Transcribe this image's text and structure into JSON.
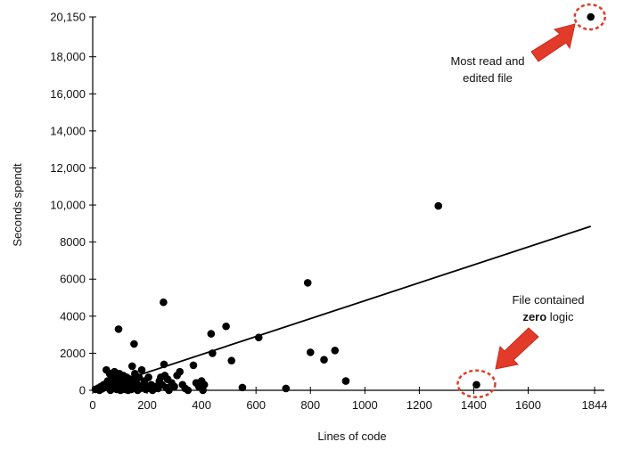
{
  "chart_data": {
    "type": "scatter",
    "xlabel": "Lines of code",
    "ylabel": "Seconds spendt",
    "xlim": [
      0,
      1844
    ],
    "ylim": [
      0,
      20150
    ],
    "x_ticks": [
      0,
      200,
      400,
      600,
      800,
      1000,
      1200,
      1400,
      1600,
      1844
    ],
    "x_tick_labels": [
      "0",
      "200",
      "400",
      "600",
      "800",
      "1000",
      "1200",
      "1400",
      "1600",
      "1844"
    ],
    "y_ticks": [
      0,
      2000,
      4000,
      6000,
      8000,
      10000,
      12000,
      14000,
      16000,
      18000,
      20150
    ],
    "y_tick_labels": [
      "0",
      "2000",
      "4000",
      "6000",
      "8000",
      "10,000",
      "12,000",
      "14,000",
      "16,000",
      "18,000",
      "20,150"
    ],
    "grid": false,
    "trendline": {
      "x": [
        0,
        1830
      ],
      "y": [
        0,
        8850
      ]
    },
    "points": [
      {
        "x": 10,
        "y": 50
      },
      {
        "x": 20,
        "y": 120
      },
      {
        "x": 25,
        "y": 0
      },
      {
        "x": 30,
        "y": 200
      },
      {
        "x": 35,
        "y": 80
      },
      {
        "x": 40,
        "y": 300
      },
      {
        "x": 45,
        "y": 150
      },
      {
        "x": 50,
        "y": 1100
      },
      {
        "x": 55,
        "y": 500
      },
      {
        "x": 60,
        "y": 250
      },
      {
        "x": 62,
        "y": 900
      },
      {
        "x": 65,
        "y": 0
      },
      {
        "x": 70,
        "y": 600
      },
      {
        "x": 72,
        "y": 350
      },
      {
        "x": 75,
        "y": 100
      },
      {
        "x": 78,
        "y": 800
      },
      {
        "x": 80,
        "y": 1000
      },
      {
        "x": 82,
        "y": 200
      },
      {
        "x": 85,
        "y": 450
      },
      {
        "x": 88,
        "y": 50
      },
      {
        "x": 90,
        "y": 700
      },
      {
        "x": 95,
        "y": 3300
      },
      {
        "x": 98,
        "y": 900
      },
      {
        "x": 100,
        "y": 300
      },
      {
        "x": 102,
        "y": 0
      },
      {
        "x": 105,
        "y": 600
      },
      {
        "x": 108,
        "y": 150
      },
      {
        "x": 110,
        "y": 400
      },
      {
        "x": 112,
        "y": 800
      },
      {
        "x": 115,
        "y": 250
      },
      {
        "x": 118,
        "y": 50
      },
      {
        "x": 120,
        "y": 500
      },
      {
        "x": 122,
        "y": 100
      },
      {
        "x": 125,
        "y": 700
      },
      {
        "x": 128,
        "y": 200
      },
      {
        "x": 130,
        "y": 0
      },
      {
        "x": 132,
        "y": 400
      },
      {
        "x": 135,
        "y": 100
      },
      {
        "x": 138,
        "y": 600
      },
      {
        "x": 140,
        "y": 300
      },
      {
        "x": 142,
        "y": 50
      },
      {
        "x": 145,
        "y": 1300
      },
      {
        "x": 148,
        "y": 200
      },
      {
        "x": 150,
        "y": 500
      },
      {
        "x": 152,
        "y": 2500
      },
      {
        "x": 155,
        "y": 900
      },
      {
        "x": 158,
        "y": 150
      },
      {
        "x": 160,
        "y": 400
      },
      {
        "x": 165,
        "y": 0
      },
      {
        "x": 170,
        "y": 700
      },
      {
        "x": 175,
        "y": 100
      },
      {
        "x": 180,
        "y": 1100
      },
      {
        "x": 185,
        "y": 300
      },
      {
        "x": 190,
        "y": 500
      },
      {
        "x": 195,
        "y": 50
      },
      {
        "x": 200,
        "y": 200
      },
      {
        "x": 205,
        "y": 700
      },
      {
        "x": 210,
        "y": 100
      },
      {
        "x": 215,
        "y": 300
      },
      {
        "x": 220,
        "y": 0
      },
      {
        "x": 230,
        "y": 200
      },
      {
        "x": 240,
        "y": 100
      },
      {
        "x": 245,
        "y": 500
      },
      {
        "x": 250,
        "y": 700
      },
      {
        "x": 255,
        "y": 300
      },
      {
        "x": 260,
        "y": 4750
      },
      {
        "x": 262,
        "y": 1400
      },
      {
        "x": 265,
        "y": 800
      },
      {
        "x": 270,
        "y": 150
      },
      {
        "x": 275,
        "y": 600
      },
      {
        "x": 280,
        "y": 0
      },
      {
        "x": 290,
        "y": 400
      },
      {
        "x": 300,
        "y": 200
      },
      {
        "x": 310,
        "y": 800
      },
      {
        "x": 320,
        "y": 1000
      },
      {
        "x": 330,
        "y": 300
      },
      {
        "x": 340,
        "y": 100
      },
      {
        "x": 350,
        "y": 0
      },
      {
        "x": 370,
        "y": 1350
      },
      {
        "x": 380,
        "y": 400
      },
      {
        "x": 390,
        "y": 200
      },
      {
        "x": 400,
        "y": 500
      },
      {
        "x": 405,
        "y": 0
      },
      {
        "x": 410,
        "y": 300
      },
      {
        "x": 435,
        "y": 3050
      },
      {
        "x": 440,
        "y": 2000
      },
      {
        "x": 490,
        "y": 3450
      },
      {
        "x": 510,
        "y": 1600
      },
      {
        "x": 550,
        "y": 150
      },
      {
        "x": 610,
        "y": 2850
      },
      {
        "x": 710,
        "y": 100
      },
      {
        "x": 790,
        "y": 5800
      },
      {
        "x": 800,
        "y": 2050
      },
      {
        "x": 850,
        "y": 1650
      },
      {
        "x": 890,
        "y": 2150
      },
      {
        "x": 930,
        "y": 500
      },
      {
        "x": 1270,
        "y": 9950
      },
      {
        "x": 1410,
        "y": 300
      },
      {
        "x": 1830,
        "y": 20150
      }
    ],
    "annotations": [
      {
        "lines": [
          {
            "text": "Most read and",
            "bold": ""
          },
          {
            "text": "edited file",
            "bold": ""
          }
        ]
      },
      {
        "lines": [
          {
            "text": "File contained",
            "bold": ""
          },
          {
            "text": " logic",
            "bold": "zero"
          }
        ]
      }
    ],
    "highlight_color": "#e23b2a",
    "point_color": "#000000"
  }
}
